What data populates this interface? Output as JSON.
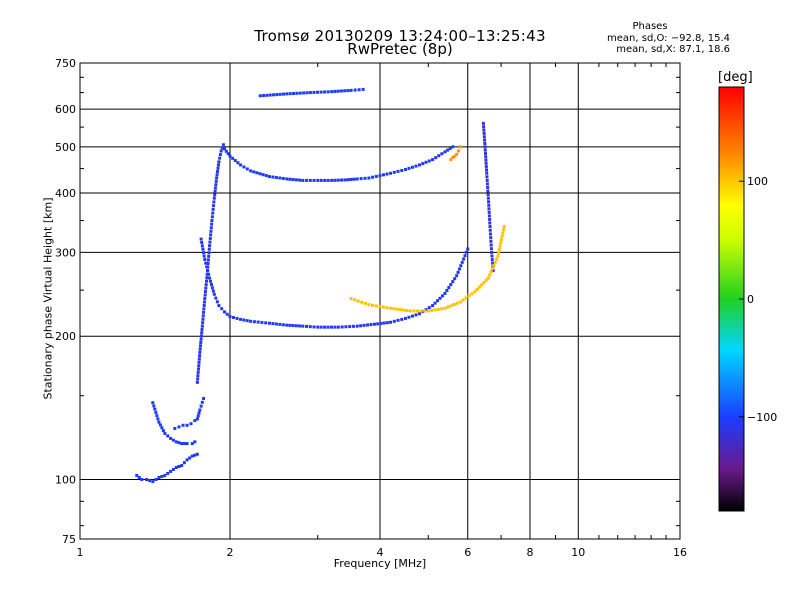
{
  "header": {
    "title_line1": "Tromsø 20130209 13:24:00–13:25:43",
    "title_line2": "RwPretec (8p)"
  },
  "phases_box": {
    "title": "Phases",
    "o_mode": "mean, sd,O: −92.8, 15.4",
    "x_mode": "mean, sd,X:  87.1, 18.6"
  },
  "colorbar": {
    "unit": "[deg]",
    "range": [
      -180,
      180
    ],
    "ticks": [
      {
        "value": 100,
        "label": "100"
      },
      {
        "value": 0,
        "label": "0"
      },
      {
        "value": -100,
        "label": "−100"
      }
    ]
  },
  "chart_data": {
    "type": "scatter",
    "title": "Tromsø 20130209 13:24:00–13:25:43",
    "subtitle": "RwPretec (8p)",
    "xlabel": "Frequency [MHz]",
    "ylabel": "Stationary phase Virtual Height [km]",
    "xscale": "log",
    "yscale": "log",
    "xlim": [
      1,
      16
    ],
    "ylim": [
      75,
      750
    ],
    "grid": true,
    "x_ticks": [
      {
        "value": 1,
        "label": "1"
      },
      {
        "value": 2,
        "label": "2"
      },
      {
        "value": 4,
        "label": "4"
      },
      {
        "value": 6,
        "label": "6"
      },
      {
        "value": 8,
        "label": "8"
      },
      {
        "value": 10,
        "label": "10"
      },
      {
        "value": 16,
        "label": "16"
      }
    ],
    "y_ticks": [
      {
        "value": 75,
        "label": "75"
      },
      {
        "value": 100,
        "label": "100"
      },
      {
        "value": 200,
        "label": "200"
      },
      {
        "value": 300,
        "label": "300"
      },
      {
        "value": 400,
        "label": "400"
      },
      {
        "value": 500,
        "label": "500"
      },
      {
        "value": 600,
        "label": "600"
      },
      {
        "value": 750,
        "label": "750"
      }
    ],
    "color_dimension": "phase [deg]",
    "traces": [
      {
        "freq": [
          1.3,
          1.33,
          1.36,
          1.4,
          1.44,
          1.48,
          1.52,
          1.56,
          1.6,
          1.64,
          1.68,
          1.72
        ],
        "height": [
          102,
          100,
          100,
          99,
          101,
          102,
          104,
          106,
          107,
          110,
          112,
          113
        ],
        "phase": -100
      },
      {
        "freq": [
          1.4,
          1.44,
          1.48,
          1.52,
          1.56,
          1.6,
          1.64,
          1.68,
          1.7
        ],
        "height": [
          145,
          132,
          125,
          122,
          120,
          119,
          119,
          119,
          120
        ],
        "phase": -100
      },
      {
        "freq": [
          1.55,
          1.58,
          1.61,
          1.64,
          1.67,
          1.7,
          1.72,
          1.74,
          1.77
        ],
        "height": [
          128,
          129,
          130,
          130,
          131,
          133,
          134,
          140,
          148
        ],
        "phase": -100
      },
      {
        "freq": [
          1.72,
          1.74,
          1.76,
          1.78,
          1.8,
          1.82,
          1.84,
          1.86,
          1.88,
          1.9,
          1.92,
          1.94
        ],
        "height": [
          160,
          185,
          210,
          240,
          270,
          310,
          350,
          390,
          430,
          465,
          490,
          505
        ],
        "phase": -108
      },
      {
        "freq": [
          1.75,
          1.78,
          1.82,
          1.86,
          1.9,
          1.95,
          2.0,
          2.1,
          2.2,
          2.4,
          2.6,
          2.8,
          3.0,
          3.3,
          3.6,
          3.9,
          4.2,
          4.5,
          4.8,
          5.1,
          5.4,
          5.7,
          6.0
        ],
        "height": [
          320,
          290,
          265,
          245,
          232,
          225,
          220,
          217,
          215,
          213,
          211,
          210,
          209,
          209,
          210,
          212,
          214,
          218,
          223,
          232,
          246,
          268,
          305
        ],
        "phase": -104
      },
      {
        "freq": [
          1.95,
          2.0,
          2.1,
          2.2,
          2.4,
          2.6,
          2.8,
          3.0,
          3.2,
          3.4,
          3.6,
          3.8,
          4.0,
          4.2,
          4.5,
          4.8,
          5.1,
          5.4,
          5.6
        ],
        "height": [
          495,
          478,
          458,
          445,
          433,
          428,
          425,
          425,
          425,
          426,
          428,
          430,
          435,
          440,
          448,
          458,
          470,
          488,
          500
        ],
        "phase": -102
      },
      {
        "freq": [
          2.3,
          2.6,
          2.9,
          3.2,
          3.5,
          3.7
        ],
        "height": [
          640,
          646,
          650,
          653,
          657,
          660
        ],
        "phase": -100
      },
      {
        "freq": [
          6.45,
          6.5,
          6.55,
          6.6,
          6.65,
          6.7,
          6.75
        ],
        "height": [
          560,
          500,
          440,
          390,
          340,
          300,
          275
        ],
        "phase": -112
      },
      {
        "freq": [
          3.5,
          3.8,
          4.2,
          4.6,
          5.0,
          5.4,
          5.8,
          6.2,
          6.6,
          6.9,
          7.1
        ],
        "height": [
          240,
          233,
          229,
          226,
          226,
          229,
          236,
          248,
          265,
          295,
          340
        ],
        "phase": 102
      },
      {
        "freq": [
          5.55,
          5.6,
          5.65,
          5.7,
          5.75,
          5.8
        ],
        "height": [
          470,
          475,
          478,
          482,
          490,
          500
        ],
        "phase": 118
      }
    ]
  }
}
